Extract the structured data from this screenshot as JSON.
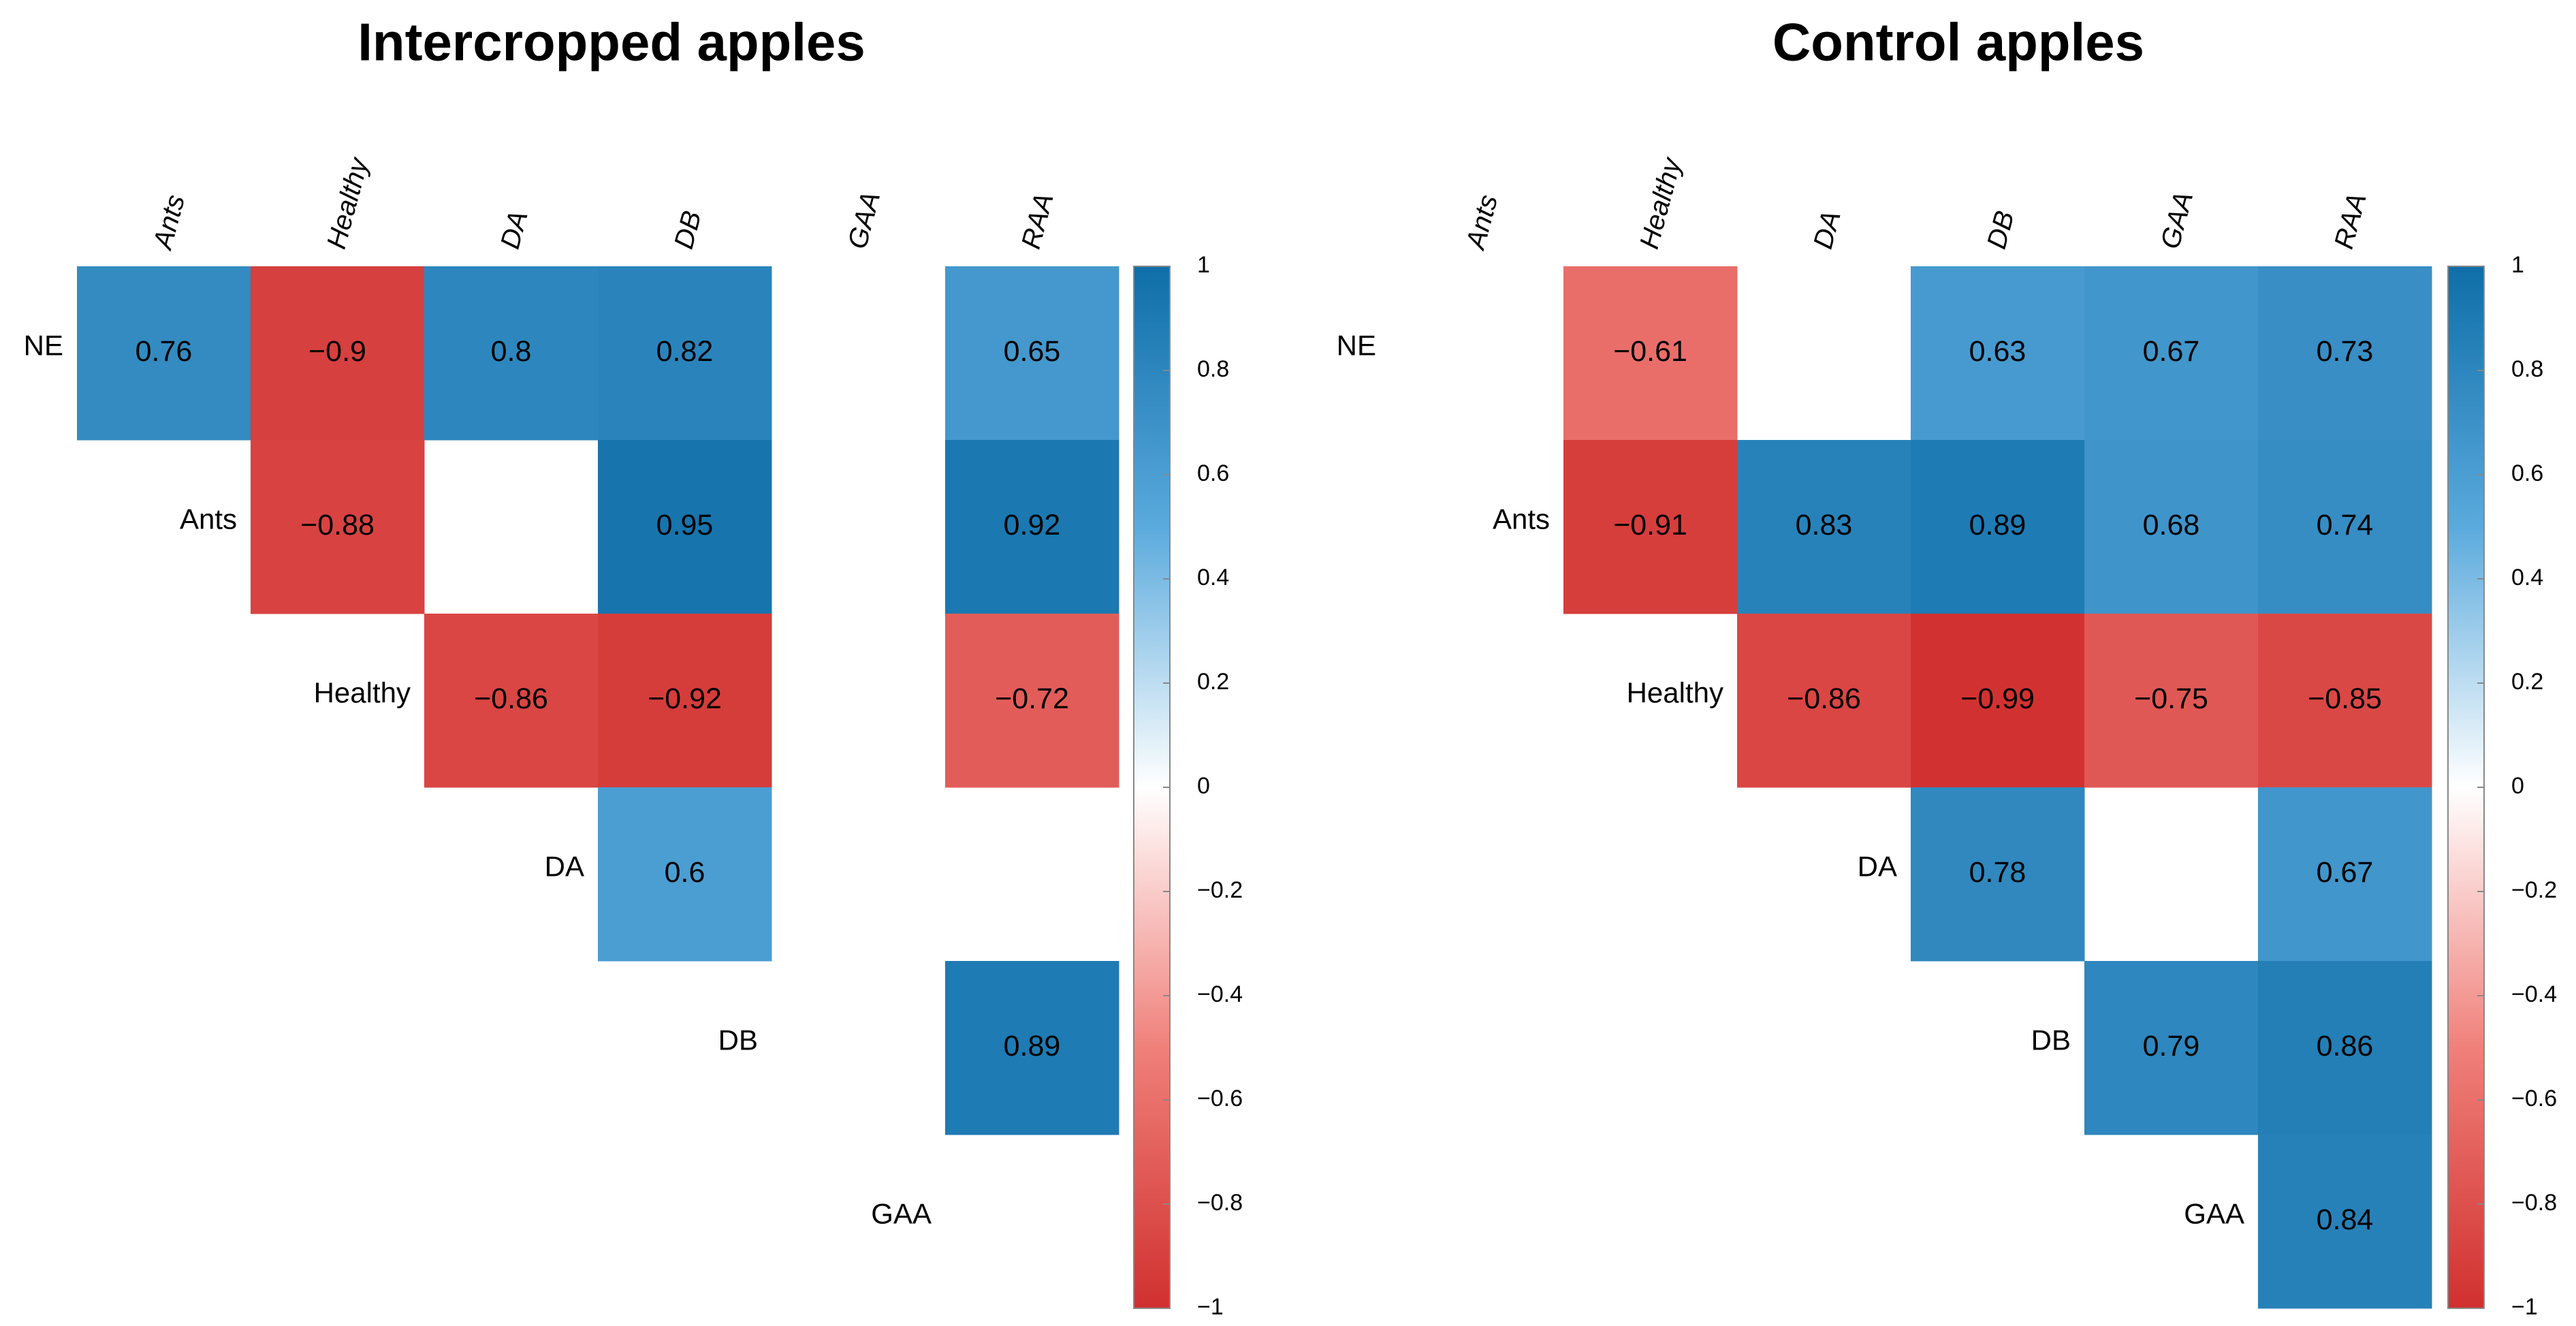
{
  "chart_data": [
    {
      "type": "heatmap",
      "title": "Intercropped apples",
      "rows": [
        "NE",
        "Ants",
        "Healthy",
        "DA",
        "DB",
        "GAA"
      ],
      "columns": [
        "Ants",
        "Healthy",
        "DA",
        "DB",
        "GAA",
        "RAA"
      ],
      "values": [
        [
          0.76,
          -0.9,
          0.8,
          0.82,
          null,
          0.65
        ],
        [
          null,
          -0.88,
          null,
          0.95,
          null,
          0.92
        ],
        [
          null,
          null,
          -0.86,
          -0.92,
          null,
          -0.72
        ],
        [
          null,
          null,
          null,
          0.6,
          null,
          null
        ],
        [
          null,
          null,
          null,
          null,
          null,
          0.89
        ],
        [
          null,
          null,
          null,
          null,
          null,
          null
        ]
      ],
      "value_labels": [
        [
          "0.76",
          "−0.9",
          "0.8",
          "0.82",
          null,
          "0.65"
        ],
        [
          null,
          "−0.88",
          null,
          "0.95",
          null,
          "0.92"
        ],
        [
          null,
          null,
          "−0.86",
          "−0.92",
          null,
          "−0.72"
        ],
        [
          null,
          null,
          null,
          "0.6",
          null,
          null
        ],
        [
          null,
          null,
          null,
          null,
          null,
          "0.89"
        ],
        [
          null,
          null,
          null,
          null,
          null,
          null
        ]
      ],
      "colorscale": [
        "#d0302f",
        "#f0807a",
        "#ffffff",
        "#5aaadd",
        "#0f6ea8"
      ],
      "zlim": [
        -1,
        1
      ],
      "zticks": [
        1,
        0.8,
        0.6,
        0.4,
        0.2,
        0,
        {
          "value": -0.2,
          "label": "−0.2"
        },
        {
          "value": -0.4,
          "label": "−0.4"
        },
        {
          "value": -0.6,
          "label": "−0.6"
        },
        {
          "value": -0.8,
          "label": "−0.8"
        },
        {
          "value": -1,
          "label": "−1"
        }
      ]
    },
    {
      "type": "heatmap",
      "title": "Control apples",
      "rows": [
        "NE",
        "Ants",
        "Healthy",
        "DA",
        "DB",
        "GAA"
      ],
      "columns": [
        "Ants",
        "Healthy",
        "DA",
        "DB",
        "GAA",
        "RAA"
      ],
      "values": [
        [
          null,
          -0.61,
          null,
          0.63,
          0.67,
          0.73
        ],
        [
          null,
          -0.91,
          0.83,
          0.89,
          0.68,
          0.74
        ],
        [
          null,
          null,
          -0.86,
          -0.99,
          -0.75,
          -0.85
        ],
        [
          null,
          null,
          null,
          0.78,
          null,
          0.67
        ],
        [
          null,
          null,
          null,
          null,
          0.79,
          0.86
        ],
        [
          null,
          null,
          null,
          null,
          null,
          0.84
        ]
      ],
      "value_labels": [
        [
          null,
          "−0.61",
          null,
          "0.63",
          "0.67",
          "0.73"
        ],
        [
          null,
          "−0.91",
          "0.83",
          "0.89",
          "0.68",
          "0.74"
        ],
        [
          null,
          null,
          "−0.86",
          "−0.99",
          "−0.75",
          "−0.85"
        ],
        [
          null,
          null,
          null,
          "0.78",
          null,
          "0.67"
        ],
        [
          null,
          null,
          null,
          null,
          "0.79",
          "0.86"
        ],
        [
          null,
          null,
          null,
          null,
          null,
          "0.84"
        ]
      ],
      "colorscale": [
        "#d0302f",
        "#f0807a",
        "#ffffff",
        "#5aaadd",
        "#0f6ea8"
      ],
      "zlim": [
        -1,
        1
      ],
      "zticks": [
        1,
        0.8,
        0.6,
        0.4,
        0.2,
        0,
        {
          "value": -0.2,
          "label": "−0.2"
        },
        {
          "value": -0.4,
          "label": "−0.4"
        },
        {
          "value": -0.6,
          "label": "−0.6"
        },
        {
          "value": -0.8,
          "label": "−0.8"
        },
        {
          "value": -1,
          "label": "−1"
        }
      ]
    }
  ]
}
